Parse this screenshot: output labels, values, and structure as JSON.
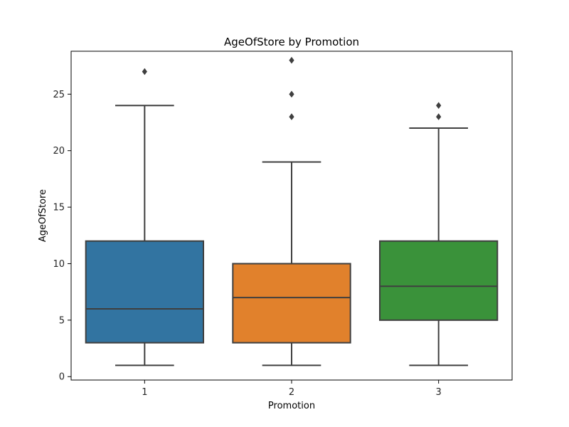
{
  "chart_data": {
    "type": "box",
    "title": "AgeOfStore by Promotion",
    "xlabel": "Promotion",
    "ylabel": "AgeOfStore",
    "categories": [
      "1",
      "2",
      "3"
    ],
    "ylim": [
      -0.3,
      28.8
    ],
    "yticks": [
      0,
      5,
      10,
      15,
      20,
      25
    ],
    "grid": false,
    "boxes": [
      {
        "category": "1",
        "whisker_low": 1,
        "q1": 3,
        "median": 6,
        "q3": 12,
        "whisker_high": 24,
        "outliers": [
          27
        ],
        "color": "#3274a1"
      },
      {
        "category": "2",
        "whisker_low": 1,
        "q1": 3,
        "median": 7,
        "q3": 10,
        "whisker_high": 19,
        "outliers": [
          23,
          25,
          28
        ],
        "color": "#e1812c"
      },
      {
        "category": "3",
        "whisker_low": 1,
        "q1": 5,
        "median": 8,
        "q3": 12,
        "whisker_high": 22,
        "outliers": [
          23,
          24
        ],
        "color": "#3a923a"
      }
    ]
  }
}
